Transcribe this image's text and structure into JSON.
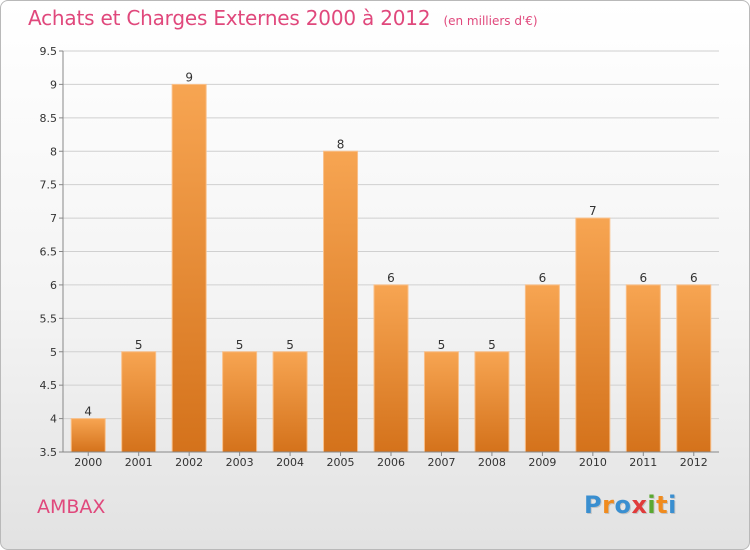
{
  "header": {
    "title": "Achats et Charges Externes 2000 à 2012",
    "subtitle": "(en milliers d'€)"
  },
  "footer": {
    "commune": "AMBAX",
    "logo_letters": [
      {
        "ch": "P",
        "color": "#3a8fd0"
      },
      {
        "ch": "r",
        "color": "#f08b1e"
      },
      {
        "ch": "o",
        "color": "#3a8fd0"
      },
      {
        "ch": "x",
        "color": "#e03b3b"
      },
      {
        "ch": "i",
        "color": "#5aa832"
      },
      {
        "ch": "t",
        "color": "#f08b1e"
      },
      {
        "ch": "i",
        "color": "#3a8fd0"
      }
    ]
  },
  "chart_data": {
    "type": "bar",
    "categories": [
      "2000",
      "2001",
      "2002",
      "2003",
      "2004",
      "2005",
      "2006",
      "2007",
      "2008",
      "2009",
      "2010",
      "2011",
      "2012"
    ],
    "values": [
      4,
      5,
      9,
      5,
      5,
      8,
      6,
      5,
      5,
      6,
      7,
      6,
      6
    ],
    "data_labels": [
      "4",
      "5",
      "9",
      "5",
      "5",
      "8",
      "6",
      "5",
      "5",
      "6",
      "7",
      "6",
      "6"
    ],
    "ylim": [
      3.5,
      9.5
    ],
    "yticks": [
      3.5,
      4,
      4.5,
      5,
      5.5,
      6,
      6.5,
      7,
      7.5,
      8,
      8.5,
      9,
      9.5
    ],
    "ytick_labels": [
      "3.5",
      "4",
      "4.5",
      "5",
      "5.5",
      "6",
      "6.5",
      "7",
      "7.5",
      "8",
      "8.5",
      "9",
      "9.5"
    ],
    "grid": true,
    "colors": {
      "bar_top": "#f7a552",
      "bar_bottom": "#d4721b",
      "grid": "#d0d0d0",
      "text": "#333333"
    }
  }
}
